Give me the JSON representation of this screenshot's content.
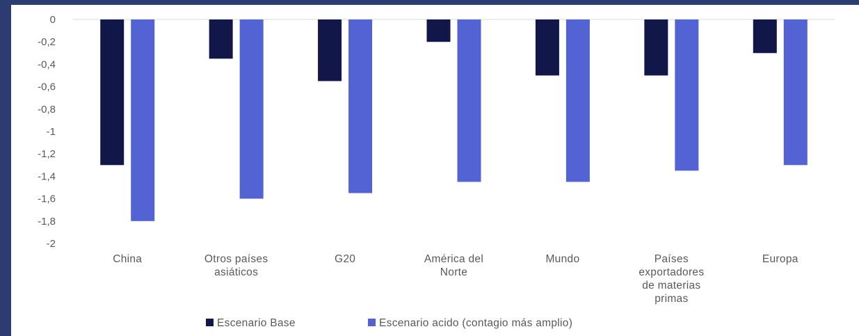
{
  "chart_data": {
    "type": "bar",
    "categories": [
      [
        "China"
      ],
      [
        "Otros países",
        "asiáticos"
      ],
      [
        "G20"
      ],
      [
        "América del",
        "Norte"
      ],
      [
        "Mundo"
      ],
      [
        "Países",
        "exportadores",
        "de materias",
        "primas"
      ],
      [
        "Europa"
      ]
    ],
    "series": [
      {
        "name": "Escenario Base",
        "color": "#12174a",
        "values": [
          -1.3,
          -0.35,
          -0.55,
          -0.2,
          -0.5,
          -0.5,
          -0.3
        ]
      },
      {
        "name": "Escenario acido (contagio más amplio)",
        "color": "#5463d4",
        "values": [
          -1.8,
          -1.6,
          -1.55,
          -1.45,
          -1.45,
          -1.35,
          -1.3
        ]
      }
    ],
    "ylim": [
      -2,
      0
    ],
    "yticks": [
      0,
      -0.2,
      -0.4,
      -0.6,
      -0.8,
      -1,
      -1.2,
      -1.4,
      -1.6,
      -1.8,
      -2
    ],
    "ytick_labels": [
      "0",
      "-0,2",
      "-0,4",
      "-0,6",
      "-0,8",
      "-1",
      "-1,2",
      "-1,4",
      "-1,6",
      "-1,8",
      "-2"
    ],
    "grid": false,
    "legend_position": "bottom"
  },
  "page": {
    "background": "#2a3c70",
    "panel": "#ffffff",
    "axis_color": "#d9d9d9"
  }
}
